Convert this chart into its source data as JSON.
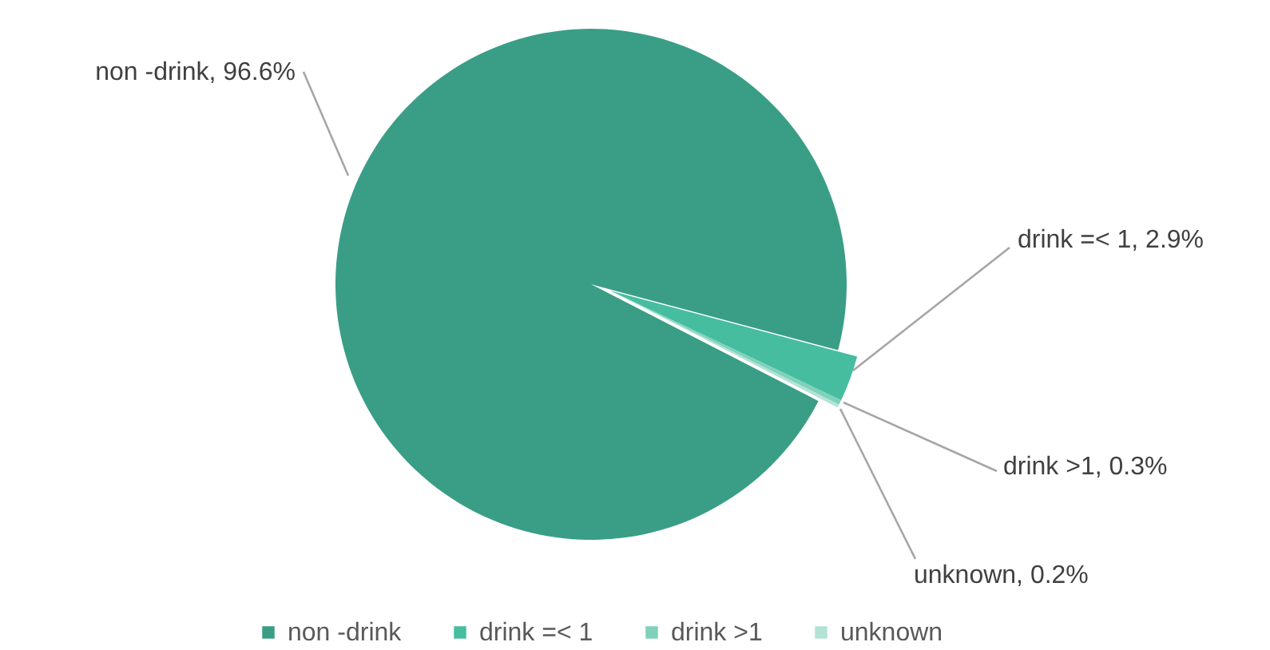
{
  "chart_data": {
    "type": "pie",
    "categories": [
      "non -drink",
      "drink =< 1",
      "drink >1",
      "unknown"
    ],
    "values": [
      96.6,
      2.9,
      0.3,
      0.2
    ],
    "colors": [
      "#3a9e87",
      "#47bda0",
      "#7fd1bb",
      "#b2e3d4"
    ],
    "value_labels": [
      "non -drink, 96.6%",
      "drink =< 1, 2.9%",
      "drink >1, 0.3%",
      "unknown, 0.2%"
    ],
    "legend": "bottom"
  }
}
